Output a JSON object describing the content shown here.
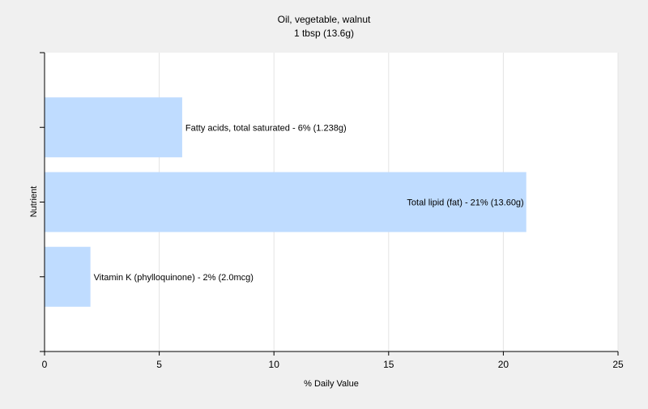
{
  "chart_data": {
    "type": "bar",
    "orientation": "horizontal",
    "title": "Oil, vegetable, walnut",
    "subtitle": "1 tbsp (13.6g)",
    "xlabel": "% Daily Value",
    "ylabel": "Nutrient",
    "xlim": [
      0,
      25
    ],
    "xticks": [
      0,
      5,
      10,
      15,
      20,
      25
    ],
    "grid": true,
    "legend": "none",
    "bar_color": "#bfdcff",
    "categories": [
      "Fatty acids, total saturated",
      "Total lipid (fat)",
      "Vitamin K (phylloquinone)"
    ],
    "values": [
      6,
      21,
      2
    ],
    "labels": [
      "Fatty acids, total saturated - 6% (1.238g)",
      "Total lipid (fat) - 21% (13.60g)",
      "Vitamin K (phylloquinone) - 2% (2.0mcg)"
    ]
  }
}
